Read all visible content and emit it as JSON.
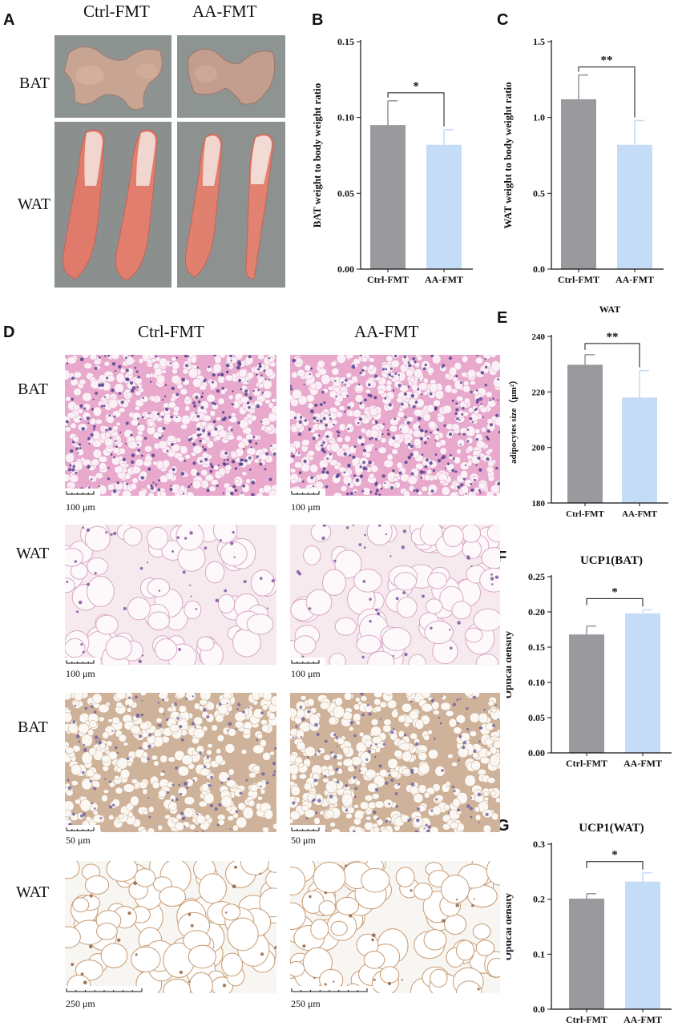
{
  "panel_letters": [
    "A",
    "B",
    "C",
    "D",
    "E",
    "F",
    "G"
  ],
  "panelA": {
    "col_headers": [
      "Ctrl-FMT",
      "AA-FMT"
    ],
    "row_labels": [
      "BAT",
      "WAT"
    ]
  },
  "panelD": {
    "col_headers": [
      "Ctrl-FMT",
      "AA-FMT"
    ],
    "rows": [
      {
        "label": "BAT",
        "scale": "100 μm",
        "style": "he-bat"
      },
      {
        "label": "WAT",
        "scale": "100 μm",
        "style": "he-wat"
      },
      {
        "label": "BAT",
        "scale": "50 μm",
        "style": "ihc-bat"
      },
      {
        "label": "WAT",
        "scale": "250 μm",
        "style": "ihc-wat"
      }
    ]
  },
  "colors": {
    "ctrl": "#9a9a9e",
    "aa": "#c5dcf8",
    "axis": "#111111"
  },
  "chart_data": [
    {
      "id": "B",
      "type": "bar",
      "title": "",
      "categories": [
        "Ctrl-FMT",
        "AA-FMT"
      ],
      "values": [
        0.095,
        0.082
      ],
      "errors": [
        0.016,
        0.01
      ],
      "ylabel": "BAT weight to body weight ratio",
      "ylim": [
        0,
        0.15
      ],
      "yticks": [
        "0.00",
        "0.05",
        "0.10",
        "0.15"
      ],
      "significance": "*"
    },
    {
      "id": "C",
      "type": "bar",
      "title": "",
      "categories": [
        "Ctrl-FMT",
        "AA-FMT"
      ],
      "values": [
        1.12,
        0.82
      ],
      "errors": [
        0.16,
        0.16
      ],
      "ylabel": "WAT weight to body weight ratio",
      "ylim": [
        0,
        1.5
      ],
      "yticks": [
        "0.0",
        "0.5",
        "1.0",
        "1.5"
      ],
      "significance": "**"
    },
    {
      "id": "E",
      "type": "bar",
      "title": "WAT",
      "categories": [
        "Ctrl-FMT",
        "AA-FMT"
      ],
      "values": [
        229.8,
        218
      ],
      "errors": [
        3.6,
        9.7
      ],
      "ylabel": "adipocytes size（μm²）",
      "ylim": [
        180,
        240
      ],
      "yticks": [
        "180",
        "200",
        "220",
        "240"
      ],
      "significance": "**"
    },
    {
      "id": "F",
      "type": "bar",
      "title": "UCP1(BAT)",
      "categories": [
        "Ctrl-FMT",
        "AA-FMT"
      ],
      "values": [
        0.168,
        0.198
      ],
      "errors": [
        0.012,
        0.005
      ],
      "ylabel": "Optical density",
      "ylim": [
        0,
        0.25
      ],
      "yticks": [
        "0.00",
        "0.05",
        "0.10",
        "0.15",
        "0.20",
        "0.25"
      ],
      "significance": "*"
    },
    {
      "id": "G",
      "type": "bar",
      "title": "UCP1(WAT)",
      "categories": [
        "Ctrl-FMT",
        "AA-FMT"
      ],
      "values": [
        0.201,
        0.232
      ],
      "errors": [
        0.009,
        0.016
      ],
      "ylabel": "Optical density",
      "ylim": [
        0,
        0.3
      ],
      "yticks": [
        "0.0",
        "0.1",
        "0.2",
        "0.3"
      ],
      "significance": "*"
    }
  ]
}
